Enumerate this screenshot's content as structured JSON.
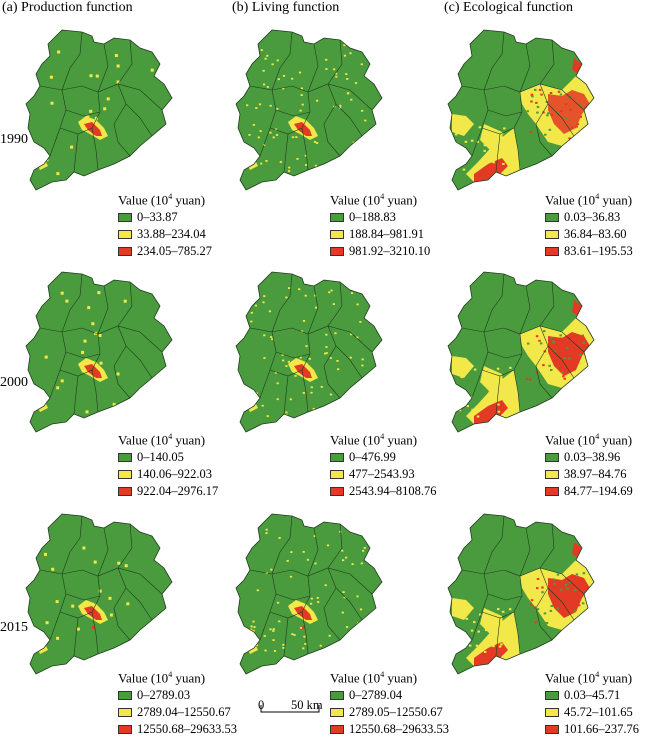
{
  "colors": {
    "low": "#4a9b3d",
    "mid": "#f2e84a",
    "high": "#e23a25",
    "boundary": "#1e3a1e"
  },
  "columns": [
    {
      "title": "(a) Production function"
    },
    {
      "title": "(b) Living function"
    },
    {
      "title": "(c) Ecological function"
    }
  ],
  "years": [
    "1990",
    "2000",
    "2015"
  ],
  "legend": {
    "title_prefix": "Value (10",
    "title_sup": "4",
    "title_suffix": " yuan)"
  },
  "panels": [
    [
      {
        "classes": [
          "0–33.87",
          "33.88–234.04",
          "234.05–785.27"
        ]
      },
      {
        "classes": [
          "0–188.83",
          "188.84–981.91",
          "981.92–3210.10"
        ]
      },
      {
        "classes": [
          "0.03–36.83",
          "36.84–83.60",
          "83.61–195.53"
        ]
      }
    ],
    [
      {
        "classes": [
          "0–140.05",
          "140.06–922.03",
          "922.04–2976.17"
        ]
      },
      {
        "classes": [
          "0–476.99",
          "477–2543.93",
          "2543.94–8108.76"
        ]
      },
      {
        "classes": [
          "0.03–38.96",
          "38.97–84.76",
          "84.77–194.69"
        ]
      }
    ],
    [
      {
        "classes": [
          "0–2789.03",
          "2789.04–12550.67",
          "12550.68–29633.53"
        ]
      },
      {
        "classes": [
          "0–2789.04",
          "2789.05–12550.67",
          "12550.68–29633.53"
        ]
      },
      {
        "classes": [
          "0.03–45.71",
          "45.72–101.65",
          "101.66–237.76"
        ]
      }
    ]
  ],
  "scalebar": {
    "start": "0",
    "end": "50 km"
  }
}
